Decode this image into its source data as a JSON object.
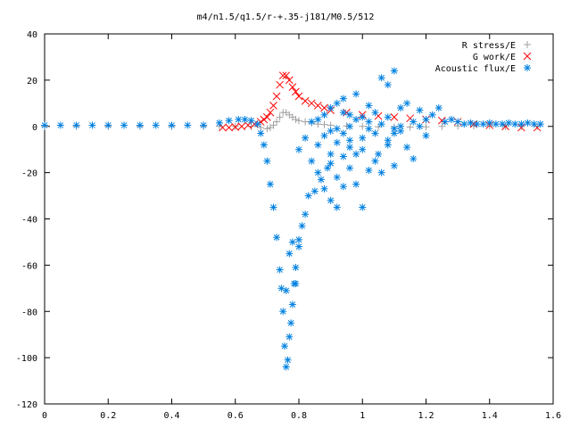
{
  "chart_data": {
    "type": "scatter",
    "title": "m4/n1.5/q1.5/r-+.35-j181/M0.5/512",
    "xlim": [
      0,
      1.6
    ],
    "ylim": [
      -120,
      40
    ],
    "xticks": [
      0,
      0.2,
      0.4,
      0.6,
      0.8,
      1,
      1.2,
      1.4,
      1.6
    ],
    "xtick_labels": [
      "0",
      "0.2",
      "0.4",
      "0.6",
      "0.8",
      "1",
      "1.2",
      "1.4",
      "1.6"
    ],
    "yticks": [
      -120,
      -100,
      -80,
      -60,
      -40,
      -20,
      0,
      20,
      40
    ],
    "ytick_labels": [
      "-120",
      "-100",
      "-80",
      "-60",
      "-40",
      "-20",
      "0",
      "20",
      "40"
    ],
    "grid": false,
    "legend_position": "top-right",
    "series": [
      {
        "name": "R stress/E",
        "marker": "plus",
        "color": "#a0a0a0",
        "points": [
          [
            0.0,
            0
          ],
          [
            0.1,
            0
          ],
          [
            0.2,
            0
          ],
          [
            0.3,
            0
          ],
          [
            0.4,
            0
          ],
          [
            0.5,
            0
          ],
          [
            0.55,
            0
          ],
          [
            0.6,
            0
          ],
          [
            0.65,
            0
          ],
          [
            0.68,
            -0.5
          ],
          [
            0.7,
            -1
          ],
          [
            0.71,
            -0.5
          ],
          [
            0.72,
            0.5
          ],
          [
            0.73,
            2
          ],
          [
            0.74,
            4
          ],
          [
            0.75,
            6
          ],
          [
            0.76,
            6
          ],
          [
            0.77,
            5
          ],
          [
            0.78,
            4
          ],
          [
            0.79,
            3
          ],
          [
            0.8,
            2.5
          ],
          [
            0.82,
            2
          ],
          [
            0.84,
            1.5
          ],
          [
            0.86,
            1
          ],
          [
            0.88,
            0.8
          ],
          [
            0.9,
            0.5
          ],
          [
            0.95,
            0.2
          ],
          [
            1.0,
            0
          ],
          [
            1.05,
            -0.2
          ],
          [
            1.1,
            -0.3
          ],
          [
            1.15,
            -0.3
          ],
          [
            1.2,
            -0.2
          ],
          [
            1.25,
            0
          ],
          [
            1.3,
            0.2
          ],
          [
            1.35,
            0.3
          ],
          [
            1.4,
            0.2
          ],
          [
            1.45,
            0
          ],
          [
            1.5,
            0
          ],
          [
            1.55,
            0
          ]
        ]
      },
      {
        "name": "G work/E",
        "marker": "cross",
        "color": "#ff0000",
        "points": [
          [
            0.56,
            -0.5
          ],
          [
            0.58,
            -0.5
          ],
          [
            0.6,
            -0.3
          ],
          [
            0.62,
            0
          ],
          [
            0.64,
            0.5
          ],
          [
            0.66,
            1
          ],
          [
            0.68,
            2
          ],
          [
            0.69,
            3
          ],
          [
            0.7,
            4
          ],
          [
            0.71,
            6
          ],
          [
            0.72,
            9
          ],
          [
            0.73,
            13
          ],
          [
            0.74,
            18
          ],
          [
            0.75,
            22
          ],
          [
            0.76,
            22
          ],
          [
            0.77,
            20
          ],
          [
            0.78,
            17
          ],
          [
            0.79,
            15
          ],
          [
            0.8,
            13
          ],
          [
            0.82,
            11
          ],
          [
            0.84,
            10
          ],
          [
            0.86,
            9
          ],
          [
            0.88,
            8
          ],
          [
            0.9,
            7
          ],
          [
            0.95,
            6
          ],
          [
            1.0,
            5
          ],
          [
            1.05,
            4.5
          ],
          [
            1.1,
            4
          ],
          [
            1.15,
            3.5
          ],
          [
            1.2,
            3
          ],
          [
            1.25,
            2.5
          ],
          [
            1.3,
            2
          ],
          [
            1.35,
            1
          ],
          [
            1.4,
            0.5
          ],
          [
            1.45,
            0
          ],
          [
            1.5,
            -0.5
          ],
          [
            1.55,
            -0.5
          ]
        ]
      },
      {
        "name": "Acoustic flux/E",
        "marker": "star",
        "color": "#0080e0",
        "points": [
          [
            0.0,
            0.5
          ],
          [
            0.05,
            0.5
          ],
          [
            0.1,
            0.5
          ],
          [
            0.15,
            0.5
          ],
          [
            0.2,
            0.5
          ],
          [
            0.25,
            0.5
          ],
          [
            0.3,
            0.5
          ],
          [
            0.35,
            0.5
          ],
          [
            0.4,
            0.5
          ],
          [
            0.45,
            0.5
          ],
          [
            0.5,
            0.5
          ],
          [
            0.55,
            1.5
          ],
          [
            0.58,
            2.5
          ],
          [
            0.61,
            3
          ],
          [
            0.63,
            3
          ],
          [
            0.65,
            2.5
          ],
          [
            0.67,
            1
          ],
          [
            0.68,
            -3
          ],
          [
            0.69,
            -8
          ],
          [
            0.7,
            -15
          ],
          [
            0.71,
            -25
          ],
          [
            0.72,
            -35
          ],
          [
            0.73,
            -48
          ],
          [
            0.74,
            -62
          ],
          [
            0.745,
            -70
          ],
          [
            0.75,
            -80
          ],
          [
            0.755,
            -95
          ],
          [
            0.76,
            -104
          ],
          [
            0.765,
            -101
          ],
          [
            0.77,
            -91
          ],
          [
            0.775,
            -85
          ],
          [
            0.78,
            -77
          ],
          [
            0.785,
            -68
          ],
          [
            0.79,
            -61
          ],
          [
            0.8,
            -52
          ],
          [
            0.81,
            -43
          ],
          [
            0.82,
            -38
          ],
          [
            0.83,
            -30
          ],
          [
            0.85,
            -28
          ],
          [
            0.87,
            -23
          ],
          [
            0.89,
            -18
          ],
          [
            0.9,
            -12
          ],
          [
            0.92,
            -7
          ],
          [
            0.94,
            -3
          ],
          [
            0.96,
            0
          ],
          [
            0.8,
            -10
          ],
          [
            0.82,
            -5
          ],
          [
            0.84,
            -15
          ],
          [
            0.86,
            -20
          ],
          [
            0.88,
            -27
          ],
          [
            0.9,
            -32
          ],
          [
            0.92,
            -35
          ],
          [
            0.94,
            -26
          ],
          [
            0.96,
            -18
          ],
          [
            0.98,
            -12
          ],
          [
            1.0,
            -35
          ],
          [
            1.02,
            -19
          ],
          [
            1.05,
            -12
          ],
          [
            1.08,
            -8
          ],
          [
            1.1,
            -3
          ],
          [
            1.12,
            0
          ],
          [
            0.78,
            -50
          ],
          [
            0.8,
            -49
          ],
          [
            0.77,
            -55
          ],
          [
            0.79,
            -68
          ],
          [
            0.76,
            -71
          ],
          [
            0.9,
            8
          ],
          [
            0.92,
            10
          ],
          [
            0.94,
            12
          ],
          [
            0.96,
            5
          ],
          [
            0.98,
            14
          ],
          [
            1.0,
            4
          ],
          [
            1.02,
            9
          ],
          [
            1.04,
            6
          ],
          [
            1.06,
            21
          ],
          [
            1.08,
            18
          ],
          [
            1.1,
            24
          ],
          [
            1.12,
            8
          ],
          [
            1.14,
            10
          ],
          [
            1.16,
            2
          ],
          [
            1.18,
            7
          ],
          [
            1.2,
            3
          ],
          [
            1.22,
            5
          ],
          [
            1.24,
            8
          ],
          [
            1.26,
            2
          ],
          [
            1.28,
            3
          ],
          [
            1.3,
            2
          ],
          [
            1.32,
            1
          ],
          [
            1.34,
            1.5
          ],
          [
            1.36,
            1
          ],
          [
            1.38,
            1
          ],
          [
            1.4,
            1.5
          ],
          [
            1.42,
            1
          ],
          [
            1.44,
            1
          ],
          [
            1.46,
            1.5
          ],
          [
            1.48,
            1
          ],
          [
            1.5,
            1
          ],
          [
            1.52,
            1.5
          ],
          [
            1.54,
            1
          ],
          [
            1.56,
            1
          ],
          [
            0.86,
            -8
          ],
          [
            0.88,
            -4
          ],
          [
            0.9,
            -16
          ],
          [
            0.92,
            -22
          ],
          [
            0.94,
            -13
          ],
          [
            0.96,
            -9
          ],
          [
            0.98,
            -25
          ],
          [
            1.0,
            -5
          ],
          [
            1.02,
            -1
          ],
          [
            1.04,
            -15
          ],
          [
            1.06,
            -20
          ],
          [
            1.08,
            -6
          ],
          [
            1.1,
            -17
          ],
          [
            1.12,
            -2
          ],
          [
            1.14,
            -9
          ],
          [
            1.16,
            -14
          ],
          [
            1.18,
            0
          ],
          [
            1.2,
            -4
          ],
          [
            0.84,
            2
          ],
          [
            0.86,
            3
          ],
          [
            0.88,
            5
          ],
          [
            0.9,
            -2
          ],
          [
            0.92,
            -1
          ],
          [
            0.94,
            6
          ],
          [
            0.96,
            -6
          ],
          [
            0.98,
            3
          ],
          [
            1.0,
            -10
          ],
          [
            1.02,
            2
          ],
          [
            1.04,
            -3
          ],
          [
            1.06,
            1
          ],
          [
            1.08,
            4
          ],
          [
            1.1,
            -1
          ]
        ]
      }
    ]
  }
}
